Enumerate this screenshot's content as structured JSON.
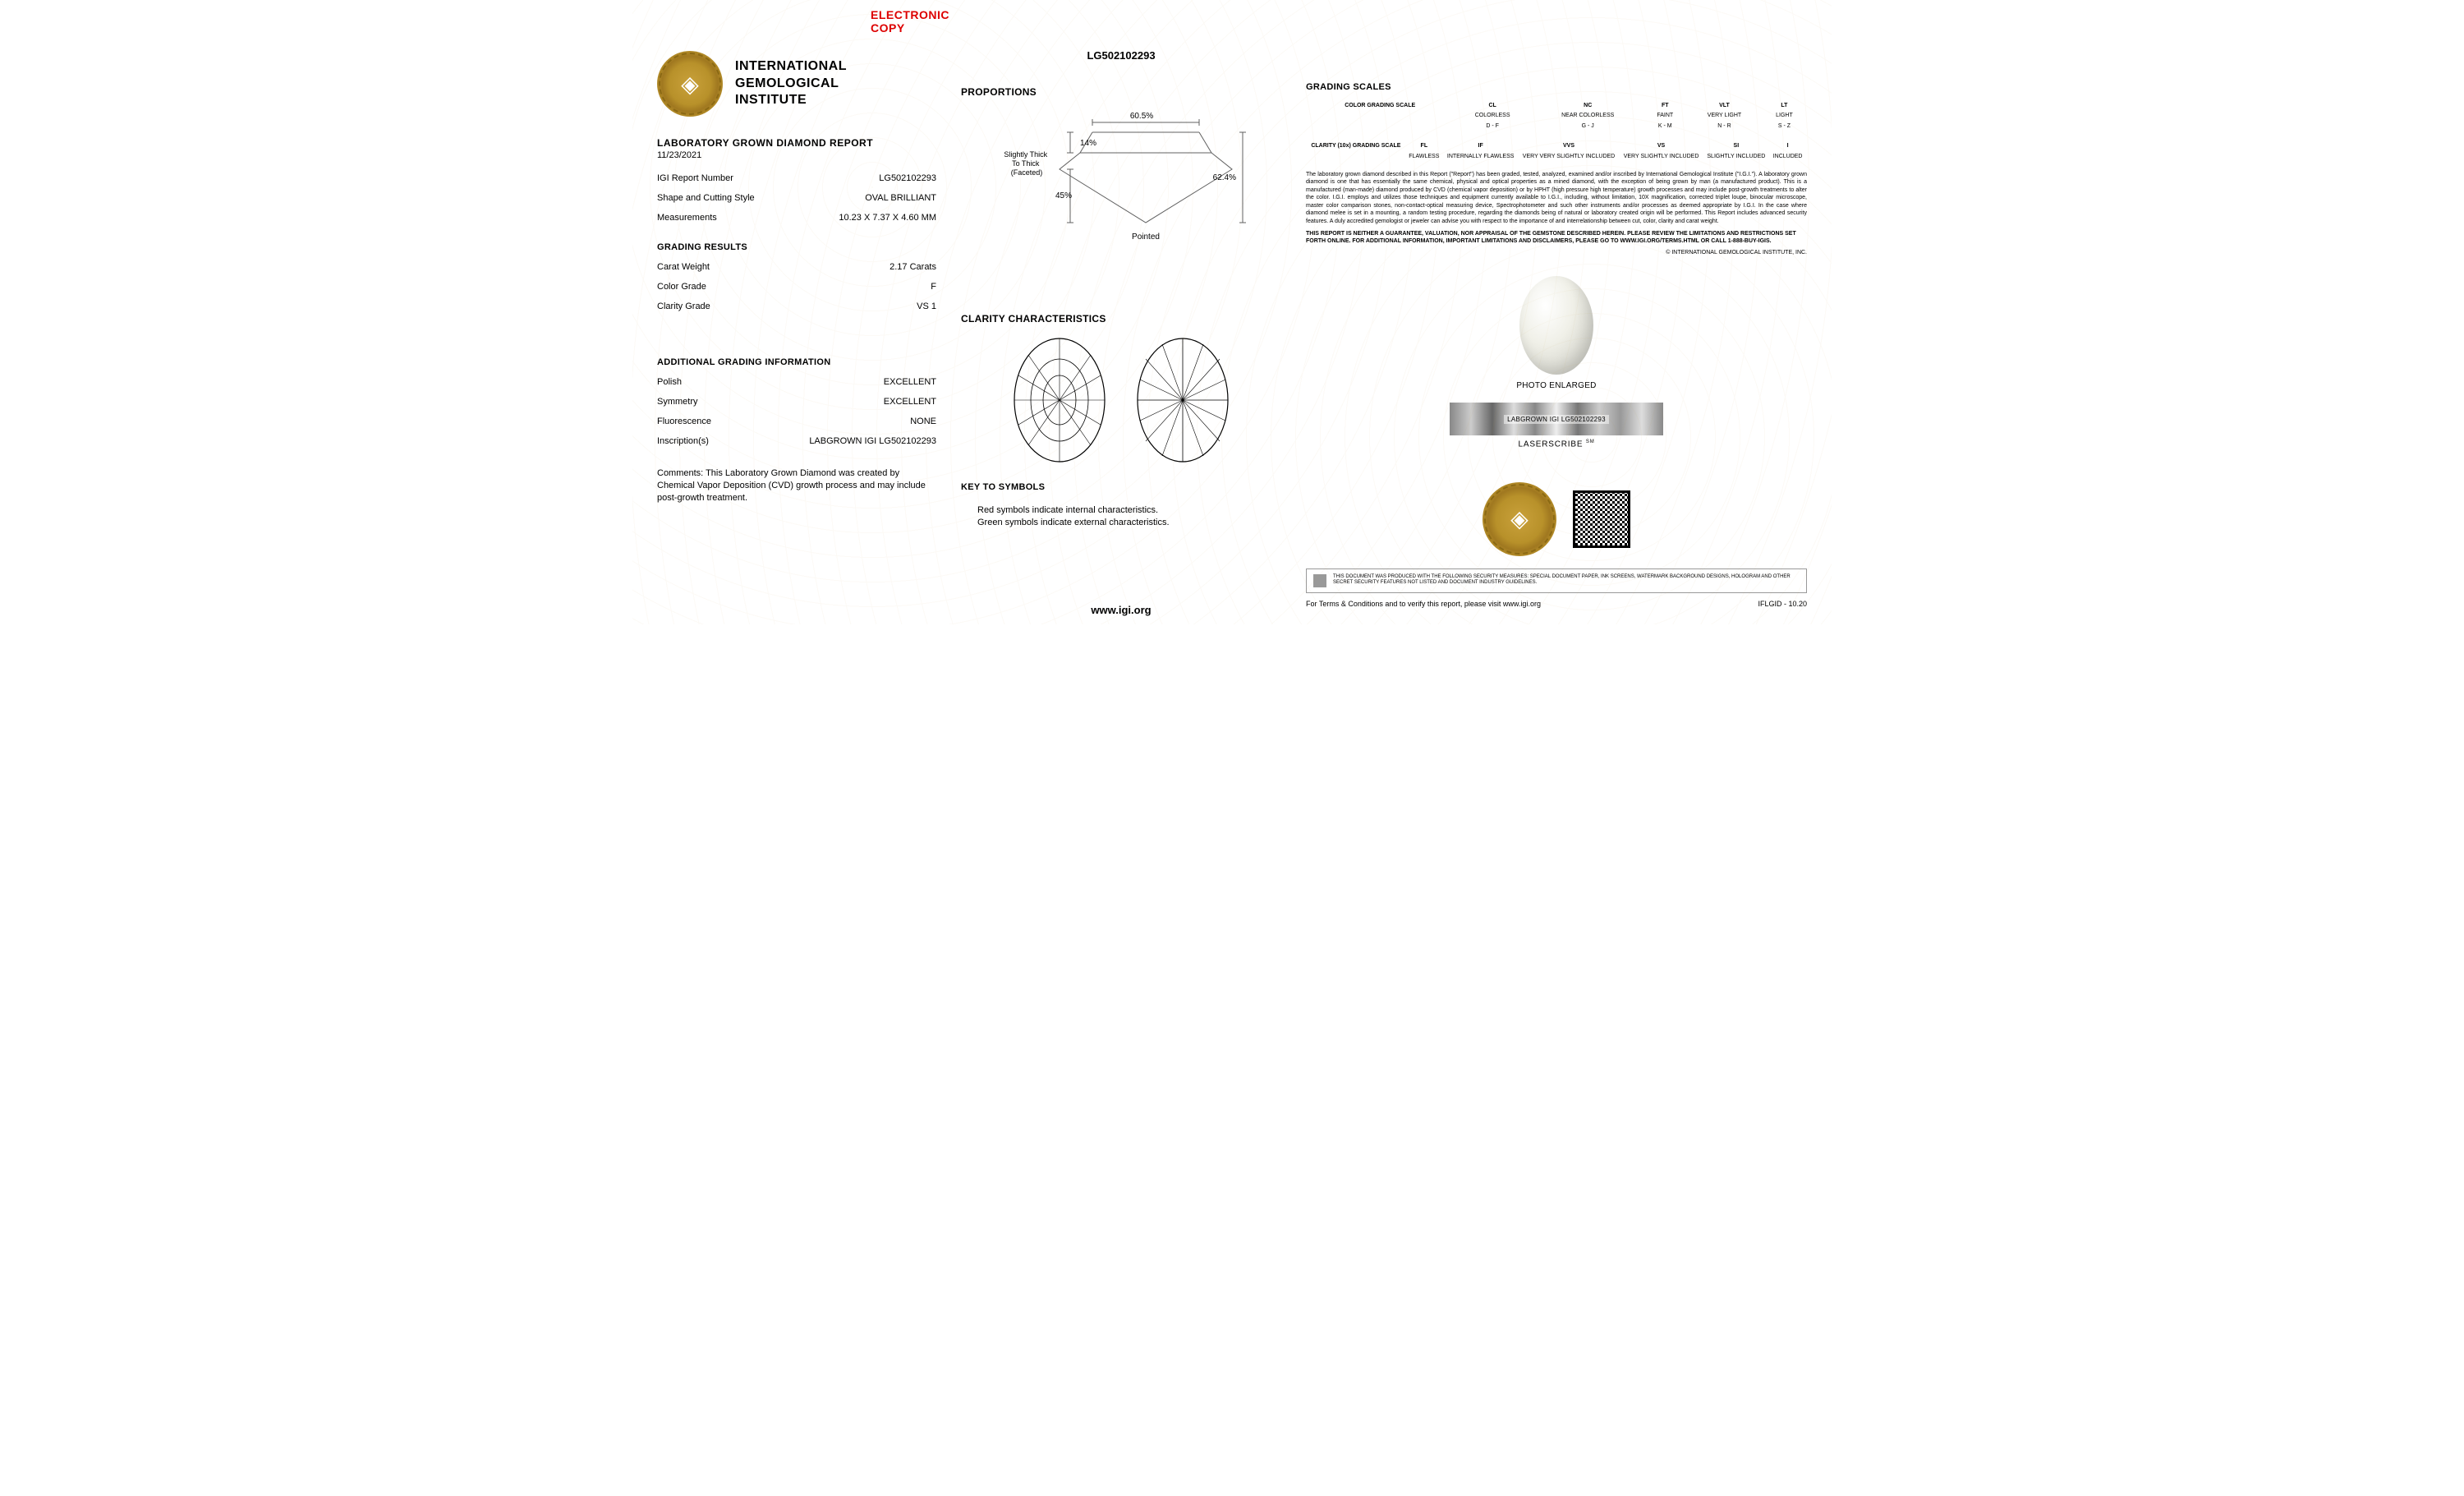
{
  "header": {
    "electronic_copy": "ELECTRONIC COPY",
    "org_line1": "INTERNATIONAL",
    "org_line2": "GEMOLOGICAL",
    "org_line3": "INSTITUTE",
    "report_title": "LABORATORY GROWN DIAMOND REPORT",
    "report_date": "11/23/2021",
    "report_number_top": "LG502102293"
  },
  "details": {
    "rows": [
      {
        "label": "IGI Report Number",
        "value": "LG502102293"
      },
      {
        "label": "Shape and Cutting Style",
        "value": "OVAL BRILLIANT"
      },
      {
        "label": "Measurements",
        "value": "10.23 X 7.37 X 4.60 MM"
      }
    ]
  },
  "grading": {
    "title": "GRADING RESULTS",
    "rows": [
      {
        "label": "Carat Weight",
        "value": "2.17 Carats"
      },
      {
        "label": "Color Grade",
        "value": "F"
      },
      {
        "label": "Clarity Grade",
        "value": "VS 1"
      }
    ]
  },
  "additional": {
    "title": "ADDITIONAL GRADING INFORMATION",
    "rows": [
      {
        "label": "Polish",
        "value": "EXCELLENT"
      },
      {
        "label": "Symmetry",
        "value": "EXCELLENT"
      },
      {
        "label": "Fluorescence",
        "value": "NONE"
      },
      {
        "label": "Inscription(s)",
        "value": "LABGROWN IGI LG502102293"
      }
    ]
  },
  "comments": {
    "text": "Comments: This Laboratory Grown Diamond was created by Chemical Vapor Deposition (CVD) growth process and may include post-growth treatment."
  },
  "proportions": {
    "title": "PROPORTIONS",
    "table_pct": "60.5%",
    "crown_pct": "14%",
    "pavilion_pct": "45%",
    "depth_pct": "62.4%",
    "girdle": "Slightly Thick To Thick (Faceted)",
    "culet": "Pointed",
    "stroke": "#606060",
    "fill": "none"
  },
  "clarity": {
    "title": "CLARITY CHARACTERISTICS",
    "key_title": "KEY TO SYMBOLS",
    "key_line1": "Red symbols indicate internal characteristics.",
    "key_line2": "Green symbols indicate external characteristics.",
    "oval_stroke": "#000",
    "oval_fill": "none"
  },
  "footer": {
    "url": "www.igi.org"
  },
  "scales": {
    "title": "GRADING SCALES",
    "color": {
      "header": [
        "COLOR GRADING SCALE",
        "CL",
        "NC",
        "FT",
        "VLT",
        "LT"
      ],
      "row1": [
        "",
        "COLORLESS",
        "NEAR COLORLESS",
        "FAINT",
        "VERY LIGHT",
        "LIGHT"
      ],
      "row2": [
        "",
        "D - F",
        "G - J",
        "K - M",
        "N - R",
        "S - Z"
      ]
    },
    "clarity": {
      "header": [
        "CLARITY (10x) GRADING SCALE",
        "FL",
        "IF",
        "VVS",
        "VS",
        "SI",
        "I"
      ],
      "row1": [
        "",
        "FLAWLESS",
        "INTERNALLY FLAWLESS",
        "VERY VERY SLIGHTLY INCLUDED",
        "VERY SLIGHTLY INCLUDED",
        "SLIGHTLY INCLUDED",
        "INCLUDED"
      ]
    }
  },
  "fineprint": {
    "body": "The laboratory grown diamond described in this Report (\"Report\") has been graded, tested, analyzed, examined and/or inscribed by International Gemological Institute (\"I.G.I.\"). A laboratory grown diamond is one that has essentially the same chemical, physical and optical properties as a mined diamond, with the exception of being grown by man (a manufactured product). This is a manufactured (man-made) diamond produced by CVD (chemical vapor deposition) or by HPHT (high pressure high temperature) growth processes and may include post-growth treatments to alter the color. I.G.I. employs and utilizes those techniques and equipment currently available to I.G.I., including, without limitation, 10X magnification, corrected triplet loupe, binocular microscope, master color comparison stones, non-contact-optical measuring device, Spectrophotometer and such other instruments and/or processes as deemed appropriate by I.G.I. In the case where diamond melee is set in a mounting, a random testing procedure, regarding the diamonds being of natural or laboratory created origin will be performed. This Report includes advanced security features. A duly accredited gemologist or jeweler can advise you with respect to the importance of and interrelationship between cut, color, clarity and carat weight.",
    "bold": "THIS REPORT IS NEITHER A GUARANTEE, VALUATION, NOR APPRAISAL OF THE GEMSTONE DESCRIBED HEREIN. PLEASE REVIEW THE LIMITATIONS AND RESTRICTIONS SET FORTH ONLINE. FOR ADDITIONAL INFORMATION, IMPORTANT LIMITATIONS AND DISCLAIMERS, PLEASE GO TO WWW.IGI.ORG/TERMS.HTML OR CALL 1-888-BUY-IGIS.",
    "copyright": "© INTERNATIONAL GEMOLOGICAL INSTITUTE, INC."
  },
  "photo": {
    "caption": "PHOTO ENLARGED",
    "laser_text": "LABGROWN IGI LG502102293",
    "laser_caption": "LASERSCRIBE",
    "laser_sm": "SM"
  },
  "security": {
    "text": "THIS DOCUMENT WAS PRODUCED WITH THE FOLLOWING SECURITY MEASURES: SPECIAL DOCUMENT PAPER, INK SCREENS, WATERMARK BACKGROUND DESIGNS, HOLOGRAM AND OTHER SECRET SECURITY FEATURES NOT LISTED AND DOCUMENT INDUSTRY GUIDELINES."
  },
  "verify": {
    "text": "For Terms & Conditions and to verify this report, please visit www.igi.org",
    "code": "IFLGID - 10.20"
  },
  "colors": {
    "red": "#d00000",
    "gold": "#c9a13b",
    "text": "#000000",
    "line": "#606060"
  }
}
